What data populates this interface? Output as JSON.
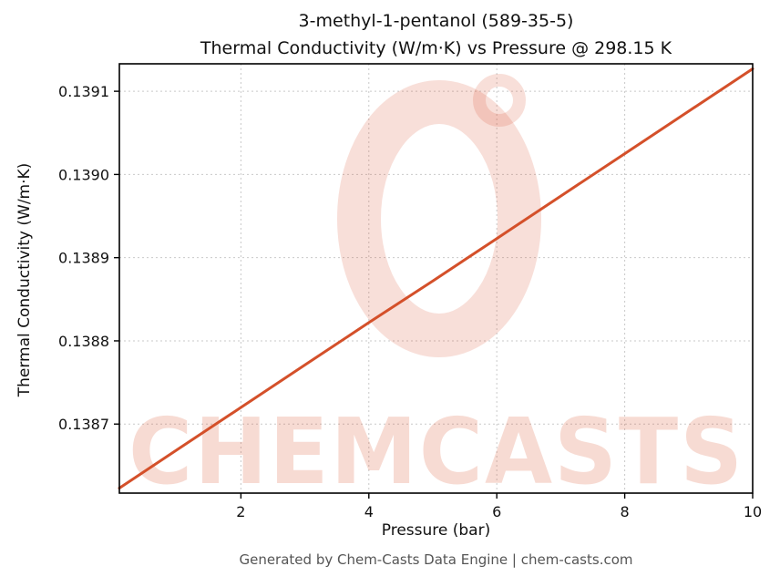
{
  "chart_data": {
    "type": "line",
    "title": "3-methyl-1-pentanol (589-35-5)\nThermal Conductivity (W/m·K) vs Pressure @ 298.15 K",
    "title_line1": "3-methyl-1-pentanol (589-35-5)",
    "title_line2": "Thermal Conductivity (W/m·K) vs Pressure @ 298.15 K",
    "xlabel": "Pressure (bar)",
    "ylabel": "Thermal Conductivity (W/m·K)",
    "x": [
      0.1,
      1,
      2,
      3,
      4,
      5,
      6,
      7,
      8,
      9,
      10
    ],
    "y": [
      0.138623,
      0.138669,
      0.13872,
      0.138771,
      0.138822,
      0.138872,
      0.138923,
      0.138974,
      0.139025,
      0.139076,
      0.139127
    ],
    "xlim": [
      0.1,
      10
    ],
    "ylim": [
      0.138617,
      0.139133
    ],
    "xticks": [
      2,
      4,
      6,
      8,
      10
    ],
    "yticks": [
      0.1387,
      0.1388,
      0.1389,
      0.139,
      0.1391
    ],
    "line_color": "#d4502a",
    "grid": true,
    "legend": "none"
  },
  "watermark": {
    "text": "CHEMCASTS",
    "color": "#d8502a",
    "text_opacity": 0.2,
    "ring_opacity": 0.18
  },
  "footer": {
    "text": "Generated by Chem-Casts Data Engine | chem-casts.com"
  }
}
